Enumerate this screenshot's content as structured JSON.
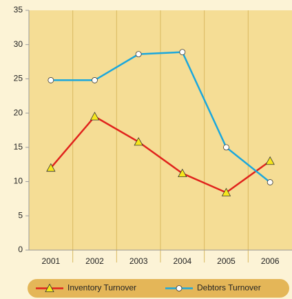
{
  "chart_data": {
    "type": "line",
    "categories": [
      "2001",
      "2002",
      "2003",
      "2004",
      "2005",
      "2006"
    ],
    "series": [
      {
        "name": "Inventory Turnover",
        "color": "#e0221c",
        "marker": "triangle",
        "values": [
          12,
          19.5,
          15.8,
          11.2,
          8.4,
          13
        ]
      },
      {
        "name": "Debtors Turnover",
        "color": "#1aa7dd",
        "marker": "circle",
        "values": [
          24.8,
          24.8,
          28.6,
          28.9,
          15,
          9.9
        ]
      }
    ],
    "ylim": [
      0,
      35
    ],
    "yticks": [
      0,
      5,
      10,
      15,
      20,
      25,
      30,
      35
    ],
    "grid": true,
    "legend": "bottom"
  }
}
